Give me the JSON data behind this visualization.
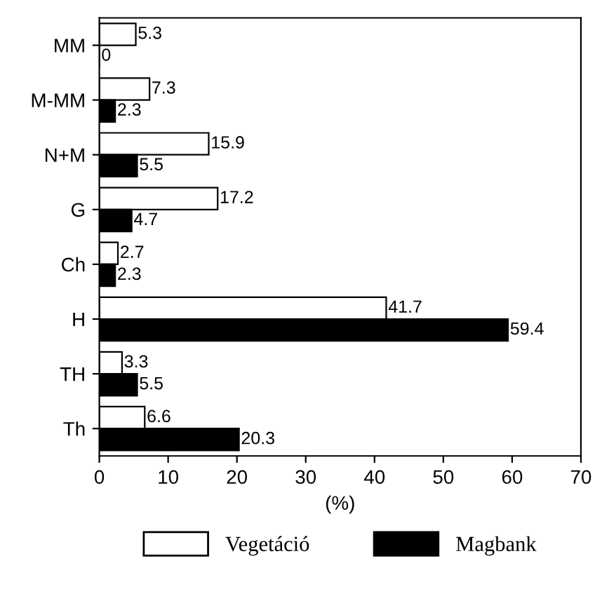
{
  "chart_data": {
    "type": "bar",
    "orientation": "horizontal",
    "xlabel": "(%)",
    "categories": [
      "MM",
      "M-MM",
      "N+M",
      "G",
      "Ch",
      "H",
      "TH",
      "Th"
    ],
    "series": [
      {
        "name": "Vegetáció",
        "color": "#ffffff",
        "values": [
          5.3,
          7.3,
          15.9,
          17.2,
          2.7,
          41.7,
          3.3,
          6.6
        ]
      },
      {
        "name": "Magbank",
        "color": "#000000",
        "values": [
          0,
          2.3,
          5.5,
          4.7,
          2.3,
          59.4,
          5.5,
          20.3
        ]
      }
    ],
    "xlim": [
      0,
      70
    ],
    "xticks": [
      0,
      10,
      20,
      30,
      40,
      50,
      60,
      70
    ],
    "data_labels": true,
    "legend": "bottom",
    "grid": false
  }
}
